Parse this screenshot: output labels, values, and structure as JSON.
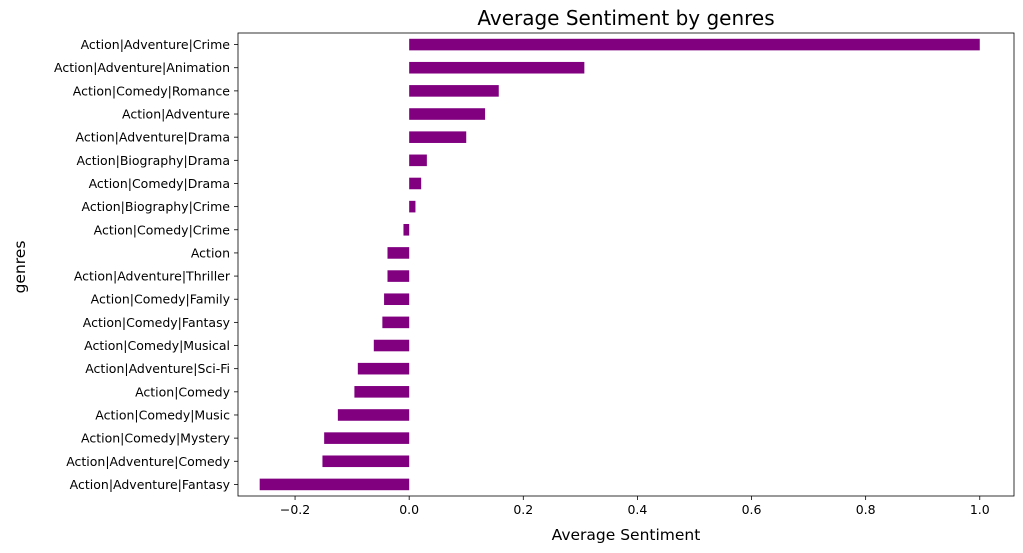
{
  "chart_data": {
    "type": "bar",
    "orientation": "horizontal",
    "title": "Average Sentiment by genres",
    "xlabel": "Average Sentiment",
    "ylabel": "genres",
    "xlim": [
      -0.3,
      1.06
    ],
    "xticks": [
      -0.2,
      0.0,
      0.2,
      0.4,
      0.6,
      0.8,
      1.0
    ],
    "xtick_labels": [
      "−0.2",
      "0.0",
      "0.2",
      "0.4",
      "0.6",
      "0.8",
      "1.0"
    ],
    "grid": false,
    "legend": "none",
    "bar_color": "#800080",
    "categories": [
      "Action|Adventure|Crime",
      "Action|Adventure|Animation",
      "Action|Comedy|Romance",
      "Action|Adventure",
      "Action|Adventure|Drama",
      "Action|Biography|Drama",
      "Action|Comedy|Drama",
      "Action|Biography|Crime",
      "Action|Comedy|Crime",
      "Action",
      "Action|Adventure|Thriller",
      "Action|Comedy|Family",
      "Action|Comedy|Fantasy",
      "Action|Comedy|Musical",
      "Action|Adventure|Sci-Fi",
      "Action|Comedy",
      "Action|Comedy|Music",
      "Action|Comedy|Mystery",
      "Action|Adventure|Comedy",
      "Action|Adventure|Fantasy"
    ],
    "values": [
      1.0,
      0.307,
      0.157,
      0.133,
      0.1,
      0.031,
      0.021,
      0.011,
      -0.01,
      -0.038,
      -0.038,
      -0.044,
      -0.047,
      -0.062,
      -0.09,
      -0.096,
      -0.125,
      -0.149,
      -0.152,
      -0.262
    ]
  }
}
